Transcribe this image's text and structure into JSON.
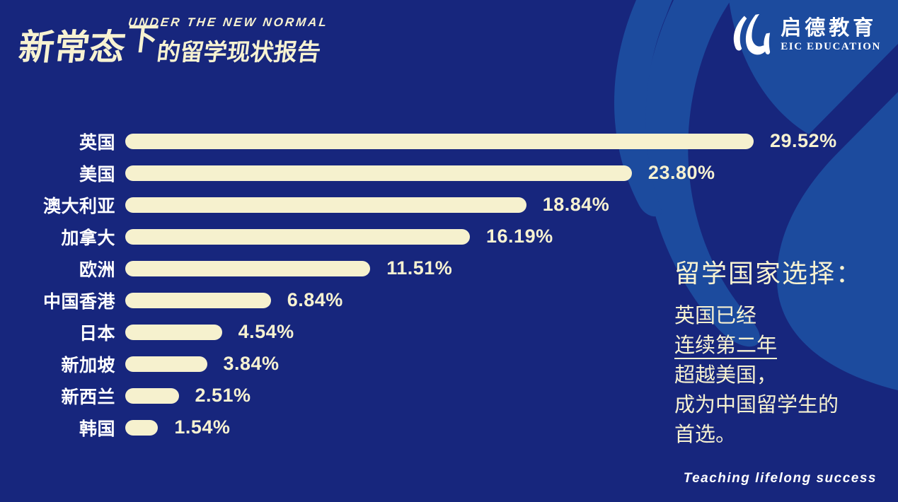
{
  "header": {
    "title_en": "UNDER THE NEW NORMAL",
    "title_cn_part1": "新常态",
    "title_cn_part2": "下",
    "title_cn_part3": "的留学现状报告",
    "logo": {
      "name_cn": "启德教育",
      "name_en": "EIC EDUCATION"
    }
  },
  "chart_data": {
    "type": "bar",
    "orientation": "horizontal",
    "categories": [
      "英国",
      "美国",
      "澳大利亚",
      "加拿大",
      "欧洲",
      "中国香港",
      "日本",
      "新加坡",
      "新西兰",
      "韩国"
    ],
    "values": [
      29.52,
      23.8,
      18.84,
      16.19,
      11.51,
      6.84,
      4.54,
      3.84,
      2.51,
      1.54
    ],
    "value_labels": [
      "29.52%",
      "23.80%",
      "18.84%",
      "16.19%",
      "11.51%",
      "6.84%",
      "4.54%",
      "3.84%",
      "2.51%",
      "1.54%"
    ],
    "xlim": [
      0,
      30
    ],
    "grid": false,
    "legend": false,
    "bar_color": "#F6F1CE",
    "category_label_color": "#FFFFFF",
    "value_label_color": "#F7F2D1"
  },
  "annotation": {
    "heading": "留学国家选择：",
    "lines": [
      {
        "text": "英国已经",
        "underline": false
      },
      {
        "text": "连续第二年",
        "underline": true
      },
      {
        "text": "超越美国，",
        "underline": false
      },
      {
        "text": "成为中国留学生的",
        "underline": false
      },
      {
        "text": "首选。",
        "underline": false
      }
    ]
  },
  "footer": {
    "tagline": "Teaching lifelong success"
  },
  "colors": {
    "background": "#17267D",
    "swoosh": "#1C4B9E",
    "cream": "#F7F2D1",
    "white": "#FFFFFF"
  }
}
